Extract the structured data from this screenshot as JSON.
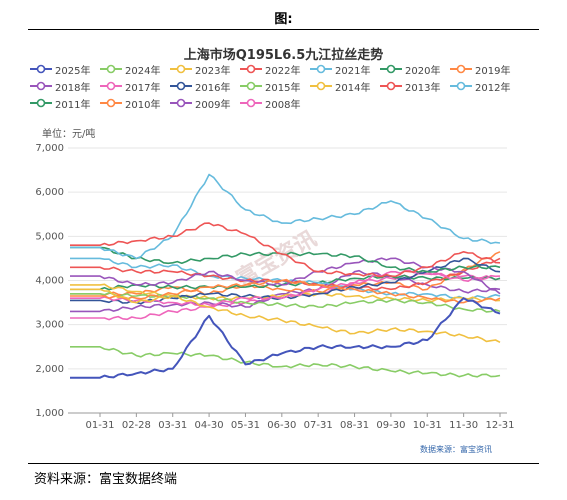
{
  "figure_label": "图:",
  "source_note": "资料来源：富宝数据终端",
  "chart_data": {
    "type": "line",
    "title": "上海市场Q195L6.5九江拉丝走势",
    "unit_label": "单位：元/吨",
    "data_source": "数据来源：富宝资讯",
    "watermark": "富宝资讯",
    "ylim": [
      1000,
      7000
    ],
    "yticks": [
      "7,000",
      "6,000",
      "5,000",
      "4,000",
      "3,000",
      "2,000",
      "1,000"
    ],
    "ytick_values": [
      7000,
      6000,
      5000,
      4000,
      3000,
      2000,
      1000
    ],
    "xticks": [
      "01-31",
      "02-28",
      "03-31",
      "04-30",
      "05-31",
      "06-30",
      "07-31",
      "08-31",
      "09-30",
      "10-31",
      "11-30",
      "12-31"
    ],
    "legend_position": "top",
    "grid": "horizontal",
    "series": [
      {
        "name": "2025年",
        "color": "#4455bb",
        "values": [
          1800,
          1900,
          2000,
          3200,
          2100,
          2350,
          2500,
          2500,
          2500,
          2650,
          3600,
          3250
        ]
      },
      {
        "name": "2024年",
        "color": "#88cc66",
        "values": [
          2500,
          2300,
          2350,
          2300,
          2150,
          2050,
          2100,
          2050,
          1950,
          1900,
          1850,
          1850
        ]
      },
      {
        "name": "2023年",
        "color": "#f0c040",
        "values": [
          3800,
          3500,
          3650,
          3400,
          3200,
          3100,
          2950,
          2800,
          2900,
          2850,
          2750,
          2600
        ]
      },
      {
        "name": "2022年",
        "color": "#ee5555",
        "values": [
          4800,
          4900,
          5000,
          5300,
          5050,
          4600,
          4200,
          4150,
          4100,
          4300,
          4650,
          4400
        ]
      },
      {
        "name": "2021年",
        "color": "#66bbdd",
        "values": [
          4750,
          4500,
          5000,
          6400,
          5600,
          5300,
          5400,
          5500,
          5800,
          5400,
          4950,
          4850
        ]
      },
      {
        "name": "2020年",
        "color": "#339966",
        "values": [
          4750,
          4500,
          4400,
          4500,
          4600,
          4600,
          4600,
          4550,
          4300,
          4200,
          4300,
          4300
        ]
      },
      {
        "name": "2019年",
        "color": "#ff8844",
        "values": [
          3650,
          3600,
          3700,
          3850,
          3900,
          4000,
          3900,
          3800,
          3700,
          3600,
          3500,
          3600
        ]
      },
      {
        "name": "2018年",
        "color": "#9955bb",
        "values": [
          4100,
          3900,
          3950,
          4200,
          4000,
          3900,
          4200,
          4400,
          4500,
          4300,
          4200,
          3700
        ]
      },
      {
        "name": "2017年",
        "color": "#ee66bb",
        "values": [
          3600,
          3550,
          3500,
          3450,
          3600,
          3600,
          3800,
          3950,
          4200,
          4200,
          4000,
          4100
        ]
      },
      {
        "name": "2016年",
        "color": "#335599",
        "values": [
          3550,
          3500,
          3600,
          3700,
          3650,
          3600,
          3700,
          3850,
          3950,
          4200,
          4500,
          4200
        ]
      },
      {
        "name": "2015年",
        "color": "#88cc66",
        "values": [
          3700,
          3650,
          3650,
          3600,
          3500,
          3450,
          3400,
          3500,
          3550,
          3500,
          3350,
          3300
        ]
      },
      {
        "name": "2014年",
        "color": "#f0c040",
        "values": [
          3900,
          3750,
          3650,
          3600,
          3600,
          3650,
          3700,
          3650,
          3600,
          3550,
          3600,
          3550
        ]
      },
      {
        "name": "2013年",
        "color": "#ee5555",
        "values": [
          4300,
          4200,
          4200,
          4100,
          4000,
          4000,
          3900,
          3850,
          3800,
          3950,
          4200,
          4500
        ]
      },
      {
        "name": "2012年",
        "color": "#66bbdd",
        "values": [
          4500,
          4300,
          4350,
          4100,
          4050,
          4000,
          3950,
          3800,
          3700,
          3700,
          3600,
          3650
        ]
      },
      {
        "name": "2011年",
        "color": "#339966",
        "values": [
          3800,
          3900,
          3850,
          3850,
          3850,
          3900,
          3950,
          4050,
          4100,
          4050,
          4050,
          4050
        ]
      },
      {
        "name": "2010年",
        "color": "#ff8844",
        "values": [
          3700,
          3700,
          3850,
          3700,
          3900,
          3800,
          3750,
          3900,
          3950,
          3800,
          4250,
          4650
        ]
      },
      {
        "name": "2009年",
        "color": "#9955bb",
        "values": [
          3300,
          3400,
          3450,
          3500,
          3400,
          3700,
          3800,
          4200,
          4100,
          3900,
          3750,
          3800
        ]
      },
      {
        "name": "2008年",
        "color": "#ee66bb",
        "values": [
          3150,
          3150,
          3300,
          3400,
          3500,
          3650,
          3700,
          3950,
          4050,
          4150,
          4100,
          4050
        ]
      }
    ]
  }
}
